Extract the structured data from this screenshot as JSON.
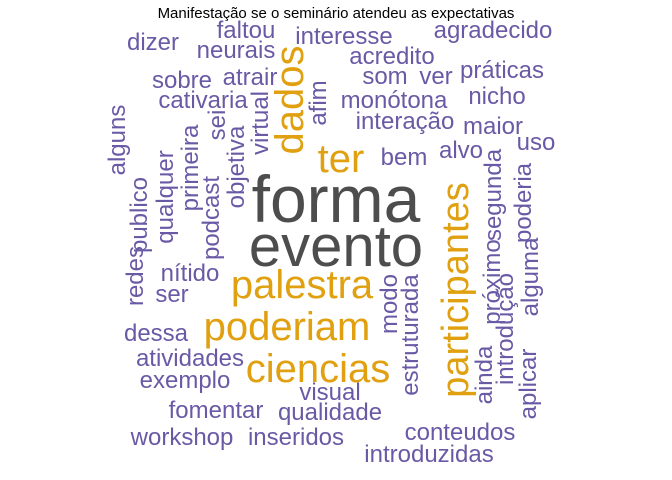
{
  "chart_data": {
    "type": "wordcloud",
    "title": "Manifestação se o seminário atendeu as expectativas",
    "colors": {
      "high": "#4d4d4d",
      "mid": "#e0a010",
      "low": "#6a5aa6"
    },
    "words": [
      {
        "word": "forma",
        "freq": 8,
        "color": "high"
      },
      {
        "word": "evento",
        "freq": 8,
        "color": "high"
      },
      {
        "word": "participantes",
        "freq": 5,
        "color": "mid"
      },
      {
        "word": "palestra",
        "freq": 5,
        "color": "mid"
      },
      {
        "word": "poderiam",
        "freq": 5,
        "color": "mid"
      },
      {
        "word": "ciencias",
        "freq": 5,
        "color": "mid"
      },
      {
        "word": "dados",
        "freq": 4,
        "color": "mid"
      },
      {
        "word": "ter",
        "freq": 4,
        "color": "mid"
      },
      {
        "word": "faltou",
        "freq": 2,
        "color": "low"
      },
      {
        "word": "interesse",
        "freq": 2,
        "color": "low"
      },
      {
        "word": "agradecido",
        "freq": 2,
        "color": "low"
      },
      {
        "word": "dizer",
        "freq": 2,
        "color": "low"
      },
      {
        "word": "neurais",
        "freq": 2,
        "color": "low"
      },
      {
        "word": "acredito",
        "freq": 2,
        "color": "low"
      },
      {
        "word": "sobre",
        "freq": 2,
        "color": "low"
      },
      {
        "word": "atrair",
        "freq": 2,
        "color": "low"
      },
      {
        "word": "som",
        "freq": 2,
        "color": "low"
      },
      {
        "word": "ver",
        "freq": 2,
        "color": "low"
      },
      {
        "word": "práticas",
        "freq": 2,
        "color": "low"
      },
      {
        "word": "cativaria",
        "freq": 2,
        "color": "low"
      },
      {
        "word": "monótona",
        "freq": 2,
        "color": "low"
      },
      {
        "word": "nicho",
        "freq": 2,
        "color": "low"
      },
      {
        "word": "interação",
        "freq": 2,
        "color": "low"
      },
      {
        "word": "maior",
        "freq": 2,
        "color": "low"
      },
      {
        "word": "alvo",
        "freq": 2,
        "color": "low"
      },
      {
        "word": "uso",
        "freq": 2,
        "color": "low"
      },
      {
        "word": "bem",
        "freq": 2,
        "color": "low"
      },
      {
        "word": "afim",
        "freq": 2,
        "color": "low"
      },
      {
        "word": "virtual",
        "freq": 2,
        "color": "low"
      },
      {
        "word": "sei",
        "freq": 2,
        "color": "low"
      },
      {
        "word": "objetiva",
        "freq": 2,
        "color": "low"
      },
      {
        "word": "podcast",
        "freq": 2,
        "color": "low"
      },
      {
        "word": "primeira",
        "freq": 2,
        "color": "low"
      },
      {
        "word": "qualquer",
        "freq": 2,
        "color": "low"
      },
      {
        "word": "publico",
        "freq": 2,
        "color": "low"
      },
      {
        "word": "alguns",
        "freq": 2,
        "color": "low"
      },
      {
        "word": "redes",
        "freq": 2,
        "color": "low"
      },
      {
        "word": "nítido",
        "freq": 2,
        "color": "low"
      },
      {
        "word": "ser",
        "freq": 2,
        "color": "low"
      },
      {
        "word": "segunda",
        "freq": 2,
        "color": "low"
      },
      {
        "word": "poderia",
        "freq": 2,
        "color": "low"
      },
      {
        "word": "próximo",
        "freq": 2,
        "color": "low"
      },
      {
        "word": "alguma",
        "freq": 2,
        "color": "low"
      },
      {
        "word": "introdução",
        "freq": 2,
        "color": "low"
      },
      {
        "word": "aplicar",
        "freq": 2,
        "color": "low"
      },
      {
        "word": "ainda",
        "freq": 2,
        "color": "low"
      },
      {
        "word": "modo",
        "freq": 2,
        "color": "low"
      },
      {
        "word": "estruturada",
        "freq": 2,
        "color": "low"
      },
      {
        "word": "dessa",
        "freq": 2,
        "color": "low"
      },
      {
        "word": "atividades",
        "freq": 2,
        "color": "low"
      },
      {
        "word": "exemplo",
        "freq": 2,
        "color": "low"
      },
      {
        "word": "visual",
        "freq": 2,
        "color": "low"
      },
      {
        "word": "fomentar",
        "freq": 2,
        "color": "low"
      },
      {
        "word": "qualidade",
        "freq": 2,
        "color": "low"
      },
      {
        "word": "workshop",
        "freq": 2,
        "color": "low"
      },
      {
        "word": "inseridos",
        "freq": 2,
        "color": "low"
      },
      {
        "word": "conteudos",
        "freq": 2,
        "color": "low"
      },
      {
        "word": "introduzidas",
        "freq": 2,
        "color": "low"
      }
    ]
  }
}
